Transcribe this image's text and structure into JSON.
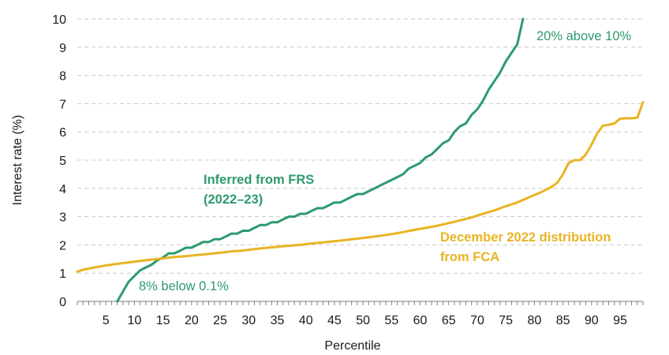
{
  "chart_data": {
    "type": "line",
    "xlabel": "Percentile",
    "ylabel": "Interest rate (%)",
    "xlim": [
      0,
      99
    ],
    "ylim": [
      0,
      10
    ],
    "xticks": [
      5,
      10,
      15,
      20,
      25,
      30,
      35,
      40,
      45,
      50,
      55,
      60,
      65,
      70,
      75,
      80,
      85,
      90,
      95
    ],
    "yticks": [
      0,
      1,
      2,
      3,
      4,
      5,
      6,
      7,
      8,
      9,
      10
    ],
    "grid": "horizontal dashed",
    "series": [
      {
        "name_lines": [
          "Inferred from FRS",
          "(2022–23)"
        ],
        "color": "#2e9a6e",
        "x": [
          7,
          8,
          9,
          10,
          11,
          12,
          13,
          14,
          15,
          16,
          17,
          18,
          19,
          20,
          21,
          22,
          23,
          24,
          25,
          26,
          27,
          28,
          29,
          30,
          31,
          32,
          33,
          34,
          35,
          36,
          37,
          38,
          39,
          40,
          41,
          42,
          43,
          44,
          45,
          46,
          47,
          48,
          49,
          50,
          51,
          52,
          53,
          54,
          55,
          56,
          57,
          58,
          59,
          60,
          61,
          62,
          63,
          64,
          65,
          66,
          67,
          68,
          69,
          70,
          71,
          72,
          73,
          74,
          75,
          76,
          77,
          78
        ],
        "y": [
          0.0,
          0.35,
          0.7,
          0.9,
          1.1,
          1.2,
          1.3,
          1.45,
          1.55,
          1.7,
          1.7,
          1.8,
          1.9,
          1.9,
          2.0,
          2.1,
          2.1,
          2.2,
          2.2,
          2.3,
          2.4,
          2.4,
          2.5,
          2.5,
          2.6,
          2.7,
          2.7,
          2.8,
          2.8,
          2.9,
          3.0,
          3.0,
          3.1,
          3.1,
          3.2,
          3.3,
          3.3,
          3.4,
          3.5,
          3.5,
          3.6,
          3.7,
          3.8,
          3.8,
          3.9,
          4.0,
          4.1,
          4.2,
          4.3,
          4.4,
          4.5,
          4.7,
          4.8,
          4.9,
          5.1,
          5.2,
          5.4,
          5.6,
          5.7,
          6.0,
          6.2,
          6.3,
          6.6,
          6.8,
          7.1,
          7.5,
          7.8,
          8.1,
          8.5,
          8.8,
          9.1,
          10.0
        ]
      },
      {
        "name_lines": [
          "December 2022 distribution",
          "from FCA"
        ],
        "color": "#e8b423",
        "x": [
          0,
          1,
          3,
          5,
          7,
          9,
          11,
          13,
          15,
          17,
          19,
          21,
          23,
          25,
          27,
          29,
          31,
          33,
          35,
          37,
          39,
          41,
          43,
          45,
          47,
          49,
          51,
          53,
          55,
          57,
          59,
          61,
          63,
          65,
          67,
          69,
          71,
          73,
          75,
          77,
          79,
          81,
          83,
          84,
          85,
          86,
          87,
          88,
          89,
          90,
          91,
          92,
          93,
          94,
          95,
          96,
          97,
          98,
          99
        ],
        "y": [
          1.05,
          1.12,
          1.2,
          1.27,
          1.33,
          1.38,
          1.43,
          1.48,
          1.52,
          1.57,
          1.6,
          1.64,
          1.68,
          1.72,
          1.77,
          1.8,
          1.85,
          1.89,
          1.93,
          1.97,
          2.0,
          2.05,
          2.09,
          2.13,
          2.17,
          2.22,
          2.27,
          2.32,
          2.38,
          2.45,
          2.53,
          2.6,
          2.68,
          2.77,
          2.87,
          2.97,
          3.1,
          3.22,
          3.37,
          3.5,
          3.68,
          3.85,
          4.05,
          4.2,
          4.5,
          4.9,
          5.0,
          5.0,
          5.2,
          5.55,
          5.95,
          6.22,
          6.25,
          6.3,
          6.47,
          6.48,
          6.48,
          6.5,
          7.05
        ]
      }
    ],
    "annotations": [
      {
        "text": "20% above 10%",
        "color": "#2e9a6e"
      },
      {
        "text": "8% below 0.1%",
        "color": "#2e9a6e"
      }
    ]
  }
}
